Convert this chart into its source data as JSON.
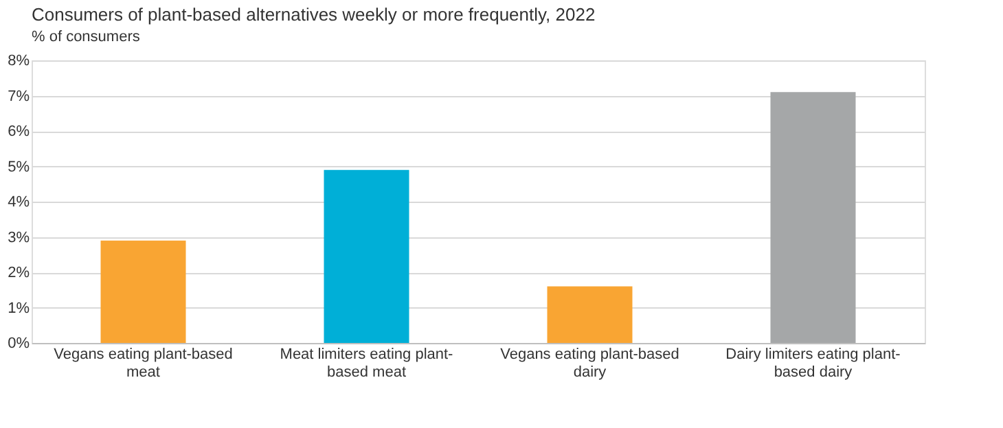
{
  "chart_data": {
    "type": "bar",
    "title": "Consumers of plant-based alternatives weekly or more frequently, 2022",
    "ylabel": "% of consumers",
    "categories": [
      "Vegans eating plant-based meat",
      "Meat limiters eating plant-based meat",
      "Vegans eating plant-based dairy",
      "Dairy limiters eating plant-based dairy"
    ],
    "values": [
      2.9,
      4.9,
      1.6,
      7.1
    ],
    "colors": [
      "#f9a533",
      "#00afd7",
      "#f9a533",
      "#a5a7a8"
    ],
    "ylim": [
      0,
      8
    ],
    "yticks": [
      {
        "value": 0,
        "label": "0%"
      },
      {
        "value": 1,
        "label": "1%"
      },
      {
        "value": 2,
        "label": "2%"
      },
      {
        "value": 3,
        "label": "3%"
      },
      {
        "value": 4,
        "label": "4%"
      },
      {
        "value": 5,
        "label": "5%"
      },
      {
        "value": 6,
        "label": "6%"
      },
      {
        "value": 7,
        "label": "7%"
      },
      {
        "value": 8,
        "label": "8%"
      }
    ],
    "grid": "y"
  }
}
